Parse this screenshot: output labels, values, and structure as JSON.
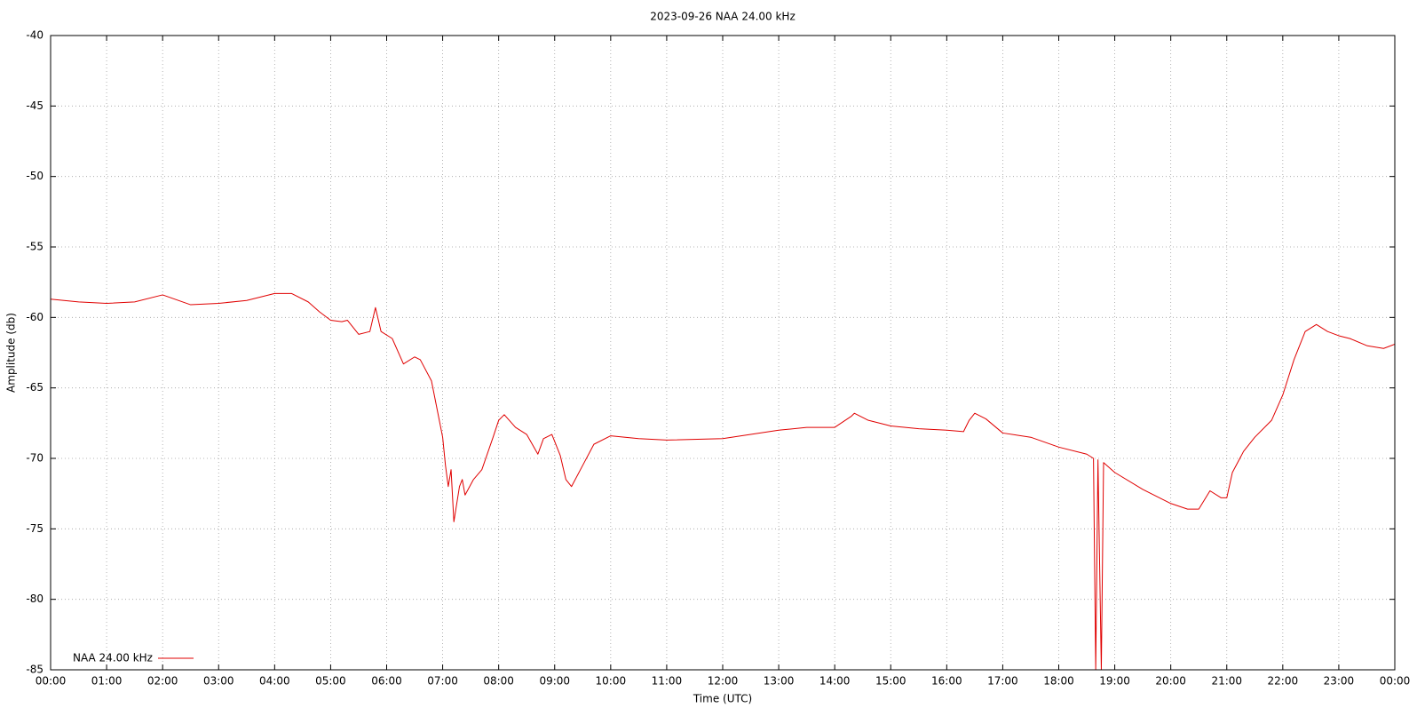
{
  "chart_data": {
    "type": "line",
    "title": "2023-09-26 NAA 24.00 kHz",
    "xlabel": "Time (UTC)",
    "ylabel": "Amplitude (db)",
    "x": [
      0,
      0.5,
      1,
      1.5,
      2,
      2.5,
      3,
      3.5,
      4,
      4.3,
      4.6,
      4.8,
      5,
      5.2,
      5.3,
      5.5,
      5.7,
      5.8,
      5.9,
      6.1,
      6.3,
      6.5,
      6.6,
      6.8,
      6.9,
      7,
      7.05,
      7.1,
      7.15,
      7.2,
      7.3,
      7.35,
      7.4,
      7.55,
      7.7,
      7.9,
      8,
      8.1,
      8.3,
      8.5,
      8.7,
      8.8,
      8.95,
      9.1,
      9.2,
      9.3,
      9.5,
      9.7,
      10,
      10.5,
      11,
      12,
      12.5,
      13,
      13.5,
      14,
      14.3,
      14.35,
      14.6,
      15,
      15.5,
      16,
      16.3,
      16.4,
      16.5,
      16.7,
      17,
      17.5,
      18,
      18.5,
      18.62,
      18.66,
      18.7,
      18.76,
      18.8,
      19,
      19.5,
      20,
      20.3,
      20.5,
      20.7,
      20.9,
      21,
      21.1,
      21.3,
      21.5,
      21.8,
      22,
      22.2,
      22.4,
      22.6,
      22.8,
      23,
      23.2,
      23.5,
      23.8,
      24
    ],
    "series": [
      {
        "name": "NAA 24.00 kHz",
        "color": "#e00000",
        "values": [
          -58.7,
          -58.9,
          -59.0,
          -58.9,
          -58.4,
          -59.1,
          -59.0,
          -58.8,
          -58.3,
          -58.3,
          -58.9,
          -59.6,
          -60.2,
          -60.3,
          -60.2,
          -61.2,
          -61.0,
          -59.3,
          -61.0,
          -61.5,
          -63.3,
          -62.8,
          -63.0,
          -64.5,
          -66.5,
          -68.5,
          -70.5,
          -72.0,
          -70.8,
          -74.5,
          -72.0,
          -71.5,
          -72.6,
          -71.5,
          -70.8,
          -68.5,
          -67.3,
          -66.9,
          -67.8,
          -68.3,
          -69.7,
          -68.6,
          -68.3,
          -69.8,
          -71.5,
          -72.0,
          -70.5,
          -69.0,
          -68.4,
          -68.6,
          -68.7,
          -68.6,
          -68.3,
          -68.0,
          -67.8,
          -67.8,
          -67.0,
          -66.8,
          -67.3,
          -67.7,
          -67.9,
          -68.0,
          -68.1,
          -67.3,
          -66.8,
          -67.2,
          -68.2,
          -68.5,
          -69.2,
          -69.7,
          -70.0,
          -85,
          -70.1,
          -85,
          -70.3,
          -71.0,
          -72.2,
          -73.2,
          -73.6,
          -73.6,
          -72.3,
          -72.8,
          -72.8,
          -71.0,
          -69.5,
          -68.5,
          -67.3,
          -65.5,
          -63.0,
          -61.0,
          -60.5,
          -61.0,
          -61.3,
          -61.5,
          -62.0,
          -62.2,
          -61.9
        ]
      }
    ],
    "xlim": [
      0,
      24
    ],
    "xticks": [
      {
        "value": 0,
        "label": "00:00"
      },
      {
        "value": 1,
        "label": "01:00"
      },
      {
        "value": 2,
        "label": "02:00"
      },
      {
        "value": 3,
        "label": "03:00"
      },
      {
        "value": 4,
        "label": "04:00"
      },
      {
        "value": 5,
        "label": "05:00"
      },
      {
        "value": 6,
        "label": "06:00"
      },
      {
        "value": 7,
        "label": "07:00"
      },
      {
        "value": 8,
        "label": "08:00"
      },
      {
        "value": 9,
        "label": "09:00"
      },
      {
        "value": 10,
        "label": "10:00"
      },
      {
        "value": 11,
        "label": "11:00"
      },
      {
        "value": 12,
        "label": "12:00"
      },
      {
        "value": 13,
        "label": "13:00"
      },
      {
        "value": 14,
        "label": "14:00"
      },
      {
        "value": 15,
        "label": "15:00"
      },
      {
        "value": 16,
        "label": "16:00"
      },
      {
        "value": 17,
        "label": "17:00"
      },
      {
        "value": 18,
        "label": "18:00"
      },
      {
        "value": 19,
        "label": "19:00"
      },
      {
        "value": 20,
        "label": "20:00"
      },
      {
        "value": 21,
        "label": "21:00"
      },
      {
        "value": 22,
        "label": "22:00"
      },
      {
        "value": 23,
        "label": "23:00"
      },
      {
        "value": 24,
        "label": "00:00"
      }
    ],
    "ylim": [
      -85,
      -40
    ],
    "yticks": [
      -85,
      -80,
      -75,
      -70,
      -65,
      -60,
      -55,
      -50,
      -45,
      -40
    ],
    "grid": true,
    "legend": "bottom left"
  }
}
